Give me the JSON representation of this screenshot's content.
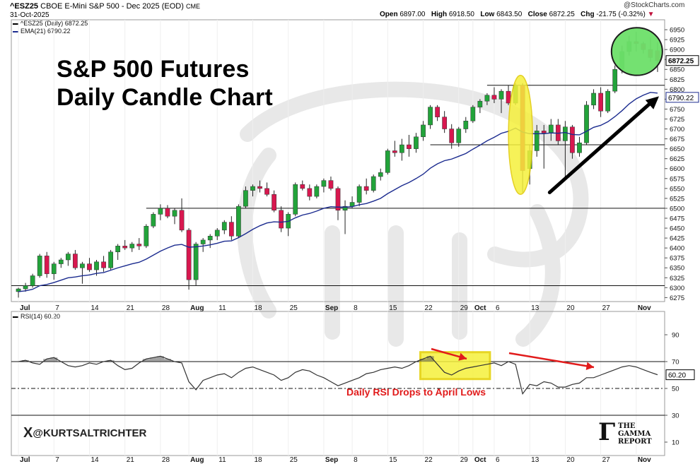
{
  "header": {
    "symbol": "^ESZ25",
    "description": "CBOE E-Mini S&P 500 - Dec 2025 (EOD)",
    "exchange": "CME",
    "date": "31-Oct-2025",
    "open_label": "Open",
    "open": "6897.00",
    "high_label": "High",
    "high": "6918.50",
    "low_label": "Low",
    "low": "6843.50",
    "close_label": "Close",
    "close": "6872.25",
    "chg_label": "Chg",
    "chg": "-21.75 (-0.32%)",
    "brand": "@StockCharts.com"
  },
  "legend": {
    "price": "^ESZ25 (Daily) 6872.25",
    "ema": "EMA(21) 6790.22",
    "rsi": "RSI(14) 60.20"
  },
  "title": {
    "line1": "S&P 500 Futures",
    "line2": "Daily Candle Chart"
  },
  "watermark": {
    "handle": "@KURTSALTRICHTER",
    "x_glyph": "X",
    "report_line1": "THE",
    "report_line2": "GAMMA",
    "report_line3": "REPORT",
    "report_logo": "Γ"
  },
  "colors": {
    "up": "#22a33a",
    "down": "#d8174f",
    "ema": "#1b2b8f",
    "highlight_yellow": "#f5f03c",
    "highlight_green": "#6de06a",
    "arrow_red": "#e11b1b"
  },
  "chart_data": [
    {
      "type": "candlestick",
      "title": "S&P 500 Futures Daily Candle Chart",
      "ylim": [
        6265,
        6975
      ],
      "y_ticks": [
        6275,
        6300,
        6325,
        6350,
        6375,
        6400,
        6425,
        6450,
        6475,
        6500,
        6525,
        6550,
        6575,
        6600,
        6625,
        6650,
        6675,
        6700,
        6725,
        6750,
        6775,
        6800,
        6825,
        6850,
        6875,
        6900,
        6925,
        6950
      ],
      "last_price_label": "6872.25",
      "ema_label": "6790.22",
      "x_ticks": [
        {
          "i": 0,
          "label": "Jul",
          "bold": true
        },
        {
          "i": 5,
          "label": "7"
        },
        {
          "i": 10,
          "label": "14"
        },
        {
          "i": 15,
          "label": "21"
        },
        {
          "i": 20,
          "label": "28"
        },
        {
          "i": 24,
          "label": "Aug",
          "bold": true
        },
        {
          "i": 28,
          "label": "11"
        },
        {
          "i": 33,
          "label": "18"
        },
        {
          "i": 38,
          "label": "25"
        },
        {
          "i": 43,
          "label": "Sep",
          "bold": true
        },
        {
          "i": 47,
          "label": "8"
        },
        {
          "i": 52,
          "label": "15"
        },
        {
          "i": 57,
          "label": "22"
        },
        {
          "i": 62,
          "label": "29"
        },
        {
          "i": 64,
          "label": "Oct",
          "bold": true
        },
        {
          "i": 67,
          "label": "6"
        },
        {
          "i": 72,
          "label": "13"
        },
        {
          "i": 77,
          "label": "20"
        },
        {
          "i": 82,
          "label": "27"
        },
        {
          "i": 87,
          "label": "Nov",
          "bold": true
        }
      ],
      "support_lines": [
        {
          "y": 6305,
          "i_from": -1,
          "i_to": 91
        },
        {
          "y": 6500,
          "i_from": 18,
          "i_to": 91
        },
        {
          "y": 6660,
          "i_from": 58,
          "i_to": 91
        },
        {
          "y": 6810,
          "i_from": 66,
          "i_to": 91
        }
      ],
      "candles": [
        [
          6290,
          6300,
          6275,
          6297
        ],
        [
          6297,
          6312,
          6290,
          6305
        ],
        [
          6305,
          6335,
          6300,
          6330
        ],
        [
          6330,
          6385,
          6325,
          6380
        ],
        [
          6380,
          6390,
          6325,
          6335
        ],
        [
          6335,
          6365,
          6320,
          6360
        ],
        [
          6360,
          6375,
          6350,
          6370
        ],
        [
          6370,
          6390,
          6355,
          6385
        ],
        [
          6385,
          6395,
          6345,
          6350
        ],
        [
          6350,
          6365,
          6310,
          6360
        ],
        [
          6360,
          6375,
          6340,
          6345
        ],
        [
          6345,
          6370,
          6330,
          6365
        ],
        [
          6365,
          6380,
          6340,
          6350
        ],
        [
          6350,
          6395,
          6345,
          6390
        ],
        [
          6390,
          6410,
          6370,
          6405
        ],
        [
          6405,
          6420,
          6395,
          6400
        ],
        [
          6400,
          6415,
          6390,
          6410
        ],
        [
          6410,
          6425,
          6395,
          6405
        ],
        [
          6405,
          6460,
          6400,
          6455
        ],
        [
          6455,
          6490,
          6450,
          6485
        ],
        [
          6485,
          6510,
          6470,
          6500
        ],
        [
          6500,
          6508,
          6475,
          6480
        ],
        [
          6480,
          6500,
          6460,
          6495
        ],
        [
          6495,
          6525,
          6440,
          6445
        ],
        [
          6445,
          6450,
          6295,
          6320
        ],
        [
          6320,
          6415,
          6305,
          6410
        ],
        [
          6410,
          6425,
          6390,
          6420
        ],
        [
          6420,
          6435,
          6400,
          6430
        ],
        [
          6430,
          6450,
          6420,
          6445
        ],
        [
          6445,
          6470,
          6435,
          6465
        ],
        [
          6465,
          6480,
          6420,
          6430
        ],
        [
          6430,
          6510,
          6425,
          6505
        ],
        [
          6505,
          6555,
          6500,
          6545
        ],
        [
          6545,
          6560,
          6530,
          6555
        ],
        [
          6555,
          6570,
          6540,
          6550
        ],
        [
          6550,
          6565,
          6530,
          6535
        ],
        [
          6535,
          6545,
          6490,
          6495
        ],
        [
          6495,
          6505,
          6440,
          6450
        ],
        [
          6450,
          6490,
          6430,
          6485
        ],
        [
          6485,
          6565,
          6480,
          6560
        ],
        [
          6560,
          6570,
          6545,
          6550
        ],
        [
          6550,
          6560,
          6520,
          6530
        ],
        [
          6530,
          6560,
          6525,
          6555
        ],
        [
          6555,
          6575,
          6540,
          6570
        ],
        [
          6570,
          6580,
          6545,
          6550
        ],
        [
          6550,
          6555,
          6470,
          6495
        ],
        [
          6495,
          6520,
          6435,
          6505
        ],
        [
          6505,
          6530,
          6500,
          6515
        ],
        [
          6515,
          6560,
          6505,
          6555
        ],
        [
          6555,
          6575,
          6535,
          6545
        ],
        [
          6545,
          6585,
          6540,
          6580
        ],
        [
          6580,
          6600,
          6570,
          6590
        ],
        [
          6590,
          6650,
          6585,
          6645
        ],
        [
          6645,
          6670,
          6630,
          6640
        ],
        [
          6640,
          6675,
          6620,
          6660
        ],
        [
          6660,
          6685,
          6630,
          6650
        ],
        [
          6650,
          6690,
          6640,
          6680
        ],
        [
          6680,
          6720,
          6670,
          6710
        ],
        [
          6710,
          6760,
          6700,
          6755
        ],
        [
          6755,
          6760,
          6720,
          6730
        ],
        [
          6730,
          6745,
          6690,
          6700
        ],
        [
          6700,
          6712,
          6650,
          6665
        ],
        [
          6665,
          6705,
          6655,
          6700
        ],
        [
          6700,
          6730,
          6690,
          6720
        ],
        [
          6720,
          6760,
          6715,
          6755
        ],
        [
          6755,
          6775,
          6740,
          6770
        ],
        [
          6770,
          6790,
          6760,
          6785
        ],
        [
          6785,
          6805,
          6765,
          6775
        ],
        [
          6775,
          6800,
          6740,
          6795
        ],
        [
          6795,
          6810,
          6760,
          6765
        ],
        [
          6765,
          6815,
          6760,
          6810
        ],
        [
          6810,
          6815,
          6540,
          6595
        ],
        [
          6600,
          6660,
          6560,
          6645
        ],
        [
          6645,
          6710,
          6630,
          6695
        ],
        [
          6695,
          6710,
          6600,
          6690
        ],
        [
          6690,
          6725,
          6670,
          6710
        ],
        [
          6710,
          6725,
          6660,
          6670
        ],
        [
          6670,
          6720,
          6580,
          6705
        ],
        [
          6705,
          6710,
          6625,
          6640
        ],
        [
          6640,
          6680,
          6630,
          6665
        ],
        [
          6665,
          6770,
          6660,
          6760
        ],
        [
          6760,
          6800,
          6750,
          6790
        ],
        [
          6790,
          6805,
          6730,
          6745
        ],
        [
          6745,
          6800,
          6740,
          6795
        ],
        [
          6795,
          6860,
          6790,
          6850
        ],
        [
          6850,
          6910,
          6840,
          6895
        ],
        [
          6895,
          6935,
          6885,
          6920
        ],
        [
          6920,
          6945,
          6895,
          6915
        ],
        [
          6915,
          6920,
          6890,
          6900
        ],
        [
          6900,
          6930,
          6870,
          6880
        ],
        [
          6897,
          6918.5,
          6843.5,
          6872.25
        ]
      ],
      "ema21": [
        6290,
        6292,
        6296,
        6305,
        6308,
        6313,
        6319,
        6325,
        6327,
        6330,
        6332,
        6336,
        6338,
        6344,
        6350,
        6355,
        6360,
        6364,
        6372,
        6382,
        6392,
        6400,
        6407,
        6409,
        6402,
        6403,
        6405,
        6408,
        6412,
        6417,
        6418,
        6426,
        6436,
        6447,
        6456,
        6463,
        6466,
        6465,
        6467,
        6476,
        6483,
        6487,
        6493,
        6500,
        6504,
        6503,
        6503,
        6504,
        6509,
        6512,
        6518,
        6525,
        6537,
        6547,
        6557,
        6565,
        6575,
        6586,
        6601,
        6612,
        6620,
        6624,
        6631,
        6638,
        6649,
        6659,
        6670,
        6679,
        6689,
        6694,
        6702,
        6692,
        6688,
        6688,
        6688,
        6690,
        6689,
        6691,
        6686,
        6685,
        6694,
        6704,
        6709,
        6718,
        6731,
        6746,
        6763,
        6776,
        6785,
        6792,
        6790.22
      ],
      "annotations": [
        {
          "type": "ellipse",
          "color": "yellow",
          "label": "",
          "i": 71,
          "y": 6660
        },
        {
          "type": "ellipse",
          "color": "green",
          "label": "",
          "i": 87,
          "y": 6895
        },
        {
          "type": "arrow",
          "from_i": 75,
          "from_y": 6540,
          "to_i": 91,
          "to_y": 6800
        }
      ]
    },
    {
      "type": "line",
      "title": "RSI(14) 60.20",
      "ylim": [
        0,
        100
      ],
      "y_ticks": [
        10,
        30,
        50,
        70,
        90
      ],
      "last_value_label": "60.20",
      "reference_lines": [
        70,
        50,
        30
      ],
      "annotation_text": "Daily RSI Drops to April Lows",
      "values": [
        70,
        71,
        69,
        68,
        72,
        73,
        70,
        67,
        66,
        67,
        69,
        68,
        70,
        71,
        67,
        64,
        65,
        69,
        72,
        73,
        74,
        72,
        70,
        69,
        55,
        49,
        56,
        58,
        60,
        61,
        58,
        62,
        65,
        66,
        64,
        62,
        60,
        56,
        58,
        62,
        64,
        63,
        60,
        58,
        55,
        52,
        54,
        56,
        58,
        61,
        62,
        64,
        65,
        66,
        65,
        67,
        70,
        72,
        74,
        68,
        62,
        60,
        63,
        65,
        66,
        67,
        68,
        69,
        67,
        70,
        68,
        46,
        53,
        52,
        55,
        54,
        51,
        51,
        53,
        54,
        58,
        58,
        60,
        62,
        64,
        66,
        67,
        66,
        64,
        62,
        60.2
      ]
    }
  ]
}
